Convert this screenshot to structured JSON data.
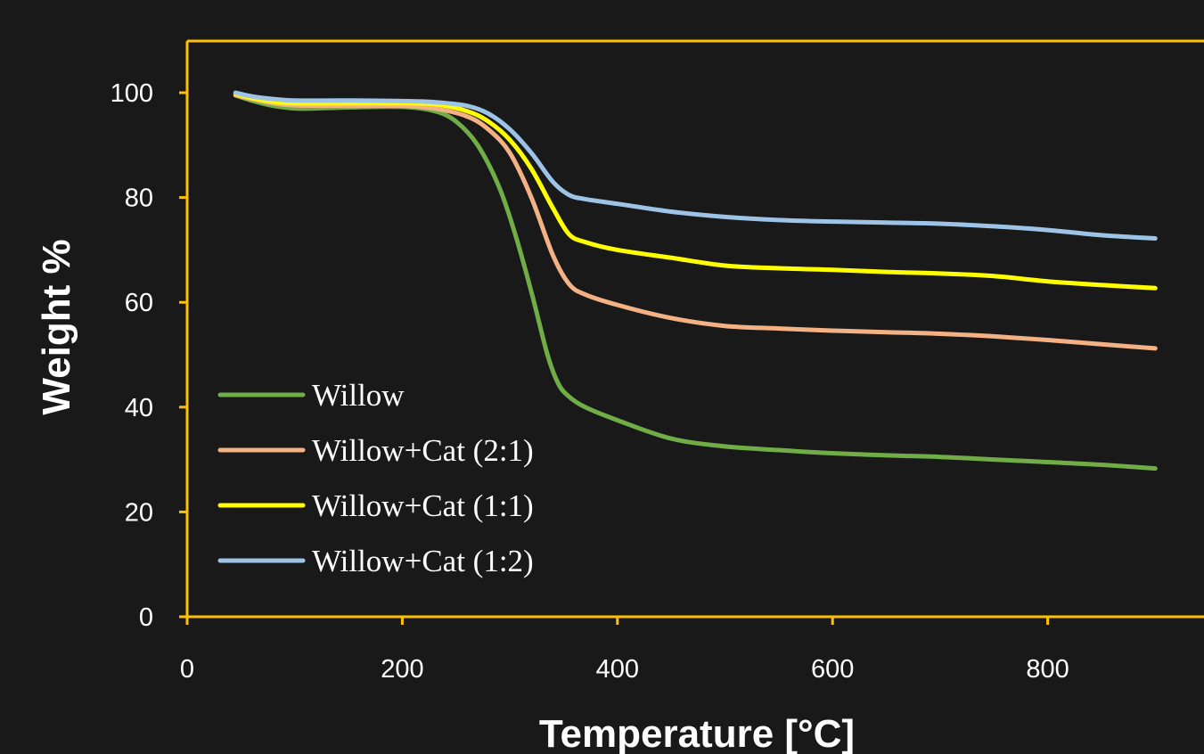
{
  "chart_data": {
    "type": "line",
    "title": "",
    "xlabel": "Temperature [°C]",
    "ylabel": "Weight %",
    "xlim": [
      0,
      950
    ],
    "ylim": [
      0,
      100
    ],
    "xticks": [
      0,
      200,
      400,
      600,
      800
    ],
    "yticks": [
      0,
      20,
      40,
      60,
      80,
      100
    ],
    "grid": false,
    "legend_position": "bottom-left",
    "axis_color": "#ffc000",
    "background": "#191919",
    "series": [
      {
        "name": "Willow",
        "color": "#70ad47",
        "x": [
          45,
          60,
          80,
          100,
          120,
          150,
          200,
          230,
          250,
          270,
          290,
          305,
          320,
          335,
          345,
          355,
          370,
          400,
          450,
          500,
          550,
          600,
          650,
          700,
          750,
          800,
          850,
          900
        ],
        "y": [
          99.5,
          98.5,
          97.5,
          97.0,
          97.0,
          97.2,
          97.3,
          96.5,
          94.5,
          90.0,
          82.0,
          73.0,
          62.0,
          50.0,
          44.5,
          42.0,
          40.0,
          37.5,
          34.0,
          32.5,
          31.8,
          31.2,
          30.8,
          30.5,
          30.0,
          29.5,
          29.0,
          28.3
        ]
      },
      {
        "name": "Willow+Cat (2:1)",
        "color": "#f4b183",
        "x": [
          45,
          60,
          80,
          100,
          150,
          200,
          230,
          260,
          280,
          300,
          320,
          340,
          355,
          370,
          400,
          450,
          500,
          550,
          600,
          650,
          700,
          750,
          800,
          850,
          900
        ],
        "y": [
          99.5,
          98.8,
          98.0,
          97.6,
          97.5,
          97.5,
          97.0,
          95.5,
          93.0,
          88.5,
          80.0,
          69.0,
          63.5,
          61.5,
          59.5,
          57.0,
          55.5,
          55.0,
          54.6,
          54.3,
          54.0,
          53.5,
          52.8,
          52.0,
          51.2
        ]
      },
      {
        "name": "Willow+Cat (1:1)",
        "color": "#ffff00",
        "x": [
          45,
          60,
          80,
          100,
          150,
          200,
          230,
          260,
          280,
          300,
          320,
          340,
          355,
          370,
          400,
          450,
          500,
          550,
          600,
          650,
          700,
          750,
          800,
          850,
          900
        ],
        "y": [
          99.8,
          99.0,
          98.3,
          98.0,
          98.0,
          98.0,
          97.8,
          96.5,
          94.5,
          91.0,
          85.5,
          78.0,
          73.0,
          71.5,
          70.0,
          68.5,
          67.0,
          66.5,
          66.2,
          65.8,
          65.5,
          65.0,
          64.0,
          63.3,
          62.7
        ]
      },
      {
        "name": "Willow+Cat (1:2)",
        "color": "#9dc3e6",
        "x": [
          45,
          60,
          80,
          100,
          150,
          200,
          230,
          260,
          280,
          300,
          320,
          340,
          355,
          370,
          400,
          450,
          500,
          550,
          600,
          650,
          700,
          750,
          800,
          850,
          900
        ],
        "y": [
          100.0,
          99.3,
          98.8,
          98.5,
          98.5,
          98.4,
          98.2,
          97.5,
          96.0,
          93.0,
          88.5,
          83.0,
          80.5,
          79.7,
          78.8,
          77.3,
          76.3,
          75.7,
          75.4,
          75.2,
          75.0,
          74.5,
          73.8,
          72.8,
          72.2
        ]
      }
    ]
  }
}
